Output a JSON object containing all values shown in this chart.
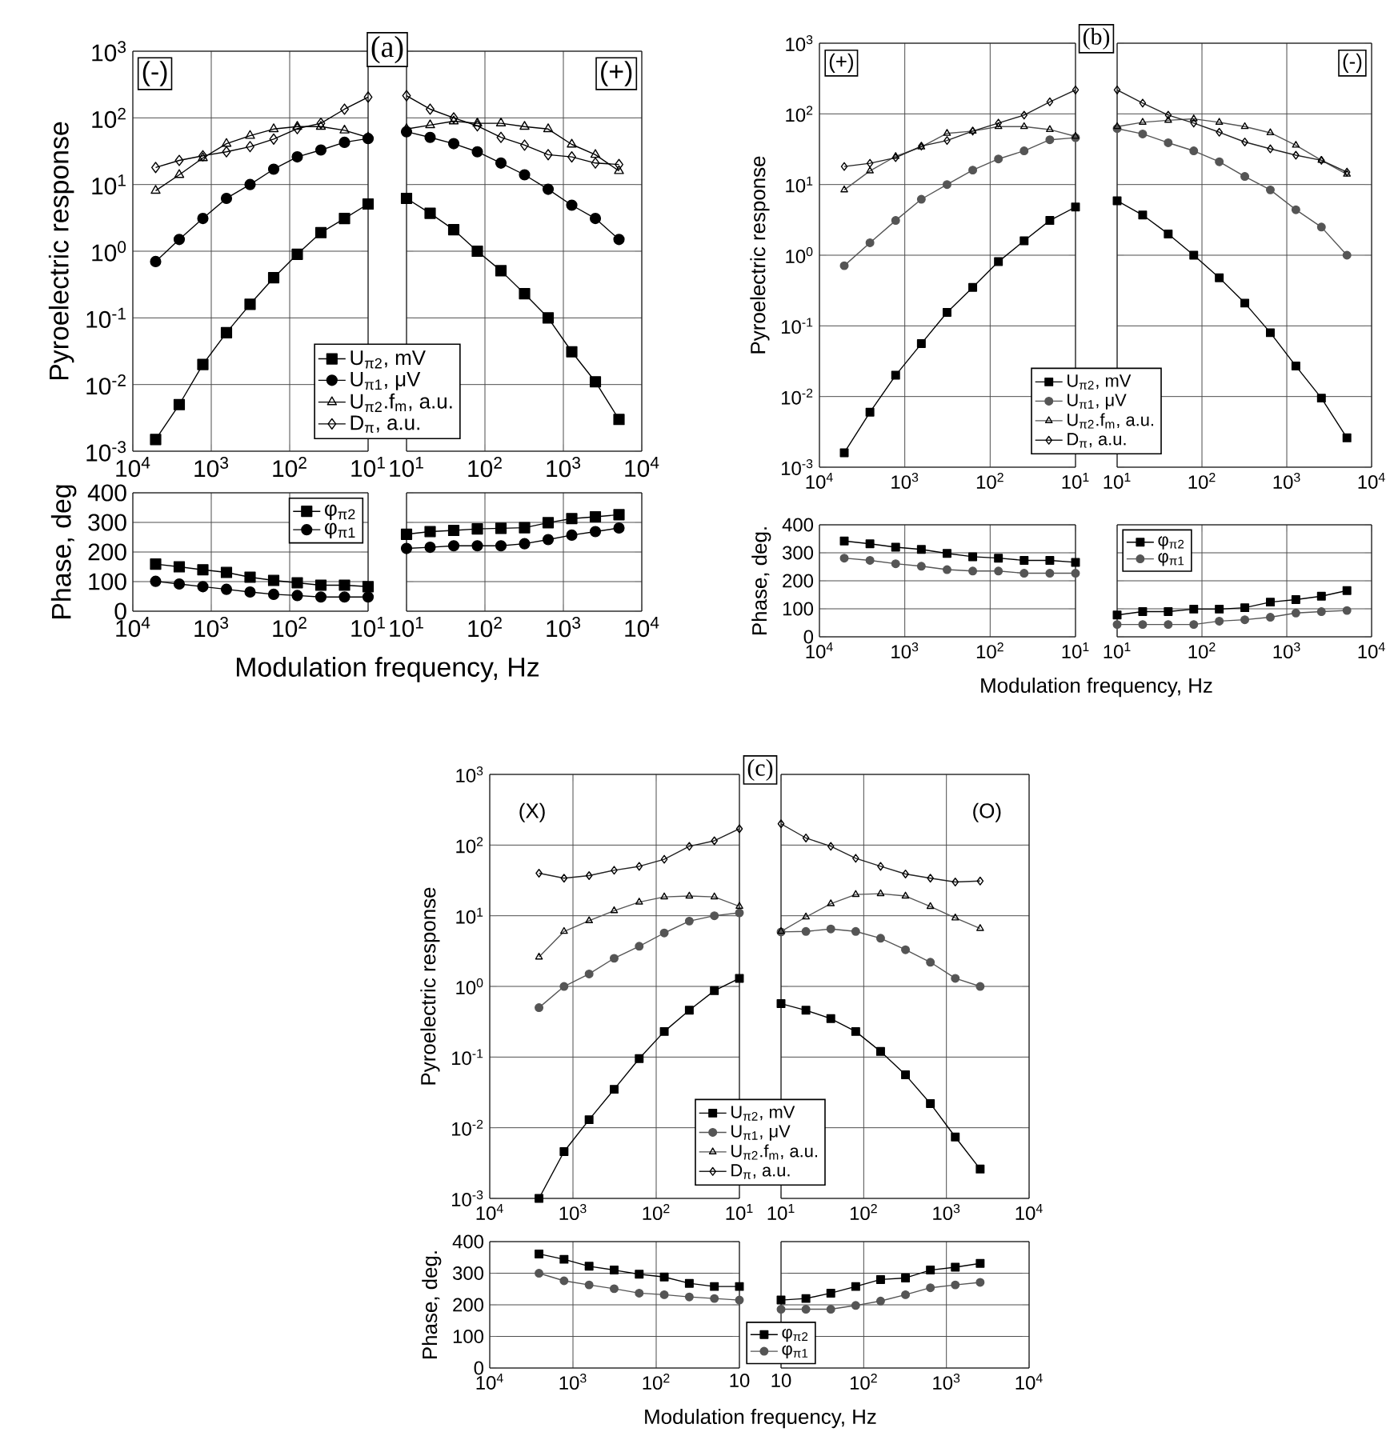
{
  "chart_data": [
    {
      "type": "line",
      "title": "(a)",
      "ylabel": "Pyroelectric response",
      "annotations": [
        "(-)"
      ],
      "log": "xy",
      "grid": true,
      "legend": "bottom",
      "x": [
        5120,
        2560,
        1280,
        640,
        320,
        160,
        80,
        40,
        20,
        10
      ],
      "xlim": [
        10000,
        10
      ],
      "ylim": [
        0.001,
        1000
      ],
      "xticks": [
        {
          "value": 10000,
          "label": "10$^{4}$"
        },
        {
          "value": 1000,
          "label": "10$^{3}$"
        },
        {
          "value": 100,
          "label": "10$^{2}$"
        },
        {
          "value": 10,
          "label": "10$^{1}$"
        }
      ],
      "yticks": [
        {
          "value": 0.001,
          "label": "10$^{-3}$"
        },
        {
          "value": 0.01,
          "label": "10$^{-2}$"
        },
        {
          "value": 0.1,
          "label": "10$^{-1}$"
        },
        {
          "value": 1,
          "label": "10$^{0}$"
        },
        {
          "value": 10,
          "label": "10$^{1}$"
        },
        {
          "value": 100,
          "label": "10$^{2}$"
        },
        {
          "value": 1000,
          "label": "10$^{3}$"
        }
      ],
      "series": [
        {
          "name": "U$_{π2}$, mV",
          "color": "#000000",
          "marker": "square",
          "values": [
            0.0015,
            0.005,
            0.02,
            0.06,
            0.16,
            0.4,
            0.9,
            1.9,
            3.1,
            5.1
          ]
        },
        {
          "name": "U$_{π1}$, μV",
          "color": "#000000",
          "marker": "circle",
          "values": [
            0.7,
            1.5,
            3.1,
            6.2,
            10,
            17,
            26,
            33,
            43,
            49
          ]
        },
        {
          "name": "U$_{π2}$.f$_{m}$, a.u.",
          "color": "#000000",
          "marker": "triangle",
          "values": [
            8.1,
            14,
            25,
            41,
            54,
            68,
            74,
            74,
            65,
            51
          ]
        },
        {
          "name": "D$_{π}$, a.u.",
          "color": "#000000",
          "marker": "diamond",
          "values": [
            18,
            23,
            27,
            31,
            37,
            48,
            69,
            83,
            135,
            205
          ]
        }
      ]
    },
    {
      "type": "line",
      "annotations": [
        "(+)"
      ],
      "log": "xy",
      "grid": true,
      "tick_labels": "x",
      "x": [
        10,
        20,
        40,
        80,
        160,
        320,
        640,
        1280,
        2560,
        5120
      ],
      "xlim": [
        10,
        10000
      ],
      "ylim": [
        0.001,
        1000
      ],
      "xticks": [
        {
          "value": 10,
          "label": "10$^{1}$"
        },
        {
          "value": 100,
          "label": "10$^{2}$"
        },
        {
          "value": 1000,
          "label": "10$^{3}$"
        },
        {
          "value": 10000,
          "label": "10$^{4}$"
        }
      ],
      "yticks": [
        {
          "value": 0.001,
          "label": null
        },
        {
          "value": 0.01,
          "label": null
        },
        {
          "value": 0.1,
          "label": null
        },
        {
          "value": 1,
          "label": null
        },
        {
          "value": 10,
          "label": null
        },
        {
          "value": 100,
          "label": null
        },
        {
          "value": 1000,
          "label": null
        }
      ],
      "series": [
        {
          "color": "#000000",
          "marker": "square",
          "values": [
            6.2,
            3.7,
            2.1,
            1.0,
            0.51,
            0.23,
            0.1,
            0.031,
            0.011,
            0.003
          ]
        },
        {
          "color": "#000000",
          "marker": "circle",
          "values": [
            62,
            51,
            41,
            31,
            21,
            14,
            8.5,
            4.9,
            3.1,
            1.5
          ]
        },
        {
          "color": "#000000",
          "marker": "triangle",
          "values": [
            68,
            78,
            89,
            83,
            83,
            74,
            68,
            40,
            28,
            16
          ]
        },
        {
          "color": "#000000",
          "marker": "diamond",
          "values": [
            215,
            135,
            100,
            76,
            51,
            39,
            28,
            26,
            21,
            20
          ]
        }
      ]
    },
    {
      "type": "line",
      "ylabel": "Phase, deg",
      "xlabel": "Modulation frequency, Hz",
      "log": "x",
      "grid": true,
      "legend": "top right",
      "x": [
        5120,
        2560,
        1280,
        640,
        320,
        160,
        80,
        40,
        20,
        10
      ],
      "xlim": [
        10000,
        10
      ],
      "ylim": [
        0,
        400
      ],
      "xticks": [
        {
          "value": 10000,
          "label": "10$^{4}$"
        },
        {
          "value": 1000,
          "label": "10$^{3}$"
        },
        {
          "value": 100,
          "label": "10$^{2}$"
        },
        {
          "value": 10,
          "label": "10$^{1}$"
        }
      ],
      "yticks": [
        0,
        100,
        200,
        300,
        400
      ],
      "series": [
        {
          "name": "φ$_{π2}$",
          "color": "#000000",
          "marker": "square",
          "values": [
            159,
            150,
            140,
            131,
            115,
            104,
            96,
            88,
            88,
            83
          ]
        },
        {
          "name": "φ$_{π1}$",
          "color": "#000000",
          "marker": "circle",
          "values": [
            101,
            92,
            83,
            74,
            65,
            57,
            53,
            48,
            48,
            48
          ]
        }
      ]
    },
    {
      "type": "line",
      "log": "x",
      "grid": true,
      "tick_labels": "x",
      "x": [
        10,
        20,
        40,
        80,
        160,
        320,
        640,
        1280,
        2560,
        5120
      ],
      "xlim": [
        10,
        10000
      ],
      "ylim": [
        0,
        400
      ],
      "xticks": [
        {
          "value": 10,
          "label": "10$^{1}$"
        },
        {
          "value": 100,
          "label": "10$^{2}$"
        },
        {
          "value": 1000,
          "label": "10$^{3}$"
        },
        {
          "value": 10000,
          "label": "10$^{4}$"
        }
      ],
      "yticks": [
        {
          "value": 0,
          "label": null
        },
        {
          "value": 100,
          "label": null
        },
        {
          "value": 200,
          "label": null
        },
        {
          "value": 300,
          "label": null
        },
        {
          "value": 400,
          "label": null
        }
      ],
      "series": [
        {
          "color": "#000000",
          "marker": "square",
          "values": [
            260,
            269,
            273,
            278,
            280,
            282,
            299,
            313,
            319,
            326
          ]
        },
        {
          "color": "#000000",
          "marker": "circle",
          "values": [
            212,
            216,
            221,
            221,
            221,
            228,
            242,
            257,
            269,
            281
          ]
        }
      ]
    },
    {
      "type": "line",
      "title": "(b)",
      "ylabel": "Pyroelectric response",
      "annotations": [
        "(+)"
      ],
      "log": "xy",
      "grid": true,
      "legend": "bottom",
      "x": [
        5120,
        2560,
        1280,
        640,
        320,
        160,
        80,
        40,
        20,
        10
      ],
      "xlim": [
        10000,
        10
      ],
      "ylim": [
        0.001,
        1000
      ],
      "xticks": [
        {
          "value": 10000,
          "label": "10$^{4}$"
        },
        {
          "value": 1000,
          "label": "10$^{3}$"
        },
        {
          "value": 100,
          "label": "10$^{2}$"
        },
        {
          "value": 10,
          "label": "10$^{1}$"
        }
      ],
      "yticks": [
        {
          "value": 0.001,
          "label": "10$^{-3}$"
        },
        {
          "value": 0.01,
          "label": "10$^{-2}$"
        },
        {
          "value": 0.1,
          "label": "10$^{-1}$"
        },
        {
          "value": 1,
          "label": "10$^{0}$"
        },
        {
          "value": 10,
          "label": "10$^{1}$"
        },
        {
          "value": 100,
          "label": "10$^{2}$"
        },
        {
          "value": 1000,
          "label": "10$^{3}$"
        }
      ],
      "series": [
        {
          "name": "U$_{π2}$, mV",
          "color": "#000000",
          "marker": "square",
          "values": [
            0.0016,
            0.006,
            0.02,
            0.056,
            0.155,
            0.35,
            0.81,
            1.6,
            3.1,
            4.8
          ]
        },
        {
          "name": "U$_{π1}$, μV",
          "color": "#555555",
          "marker": "circle",
          "values": [
            0.71,
            1.5,
            3.1,
            6.2,
            10,
            16,
            23,
            30,
            43,
            46
          ]
        },
        {
          "name": "U$_{π2}$.f$_{m}$, a.u.",
          "color": "#555555",
          "marker": "triangle",
          "values": [
            8.4,
            15.6,
            25,
            34,
            53,
            57,
            66,
            66,
            60,
            48
          ]
        },
        {
          "name": "D$_{π}$, a.u.",
          "color": "#222222",
          "marker": "diamond",
          "values": [
            18,
            20,
            24,
            35,
            42,
            57,
            74,
            96,
            148,
            218
          ]
        }
      ]
    },
    {
      "type": "line",
      "annotations": [
        "(-)"
      ],
      "log": "xy",
      "grid": true,
      "tick_labels": "x",
      "x": [
        10,
        20,
        40,
        80,
        160,
        320,
        640,
        1280,
        2560,
        5120
      ],
      "xlim": [
        10,
        10000
      ],
      "ylim": [
        0.001,
        1000
      ],
      "xticks": [
        {
          "value": 10,
          "label": "10$^{1}$"
        },
        {
          "value": 100,
          "label": "10$^{2}$"
        },
        {
          "value": 1000,
          "label": "10$^{3}$"
        },
        {
          "value": 10000,
          "label": "10$^{4}$"
        }
      ],
      "yticks": [
        {
          "value": 0.001,
          "label": null
        },
        {
          "value": 0.01,
          "label": null
        },
        {
          "value": 0.1,
          "label": null
        },
        {
          "value": 1,
          "label": null
        },
        {
          "value": 10,
          "label": null
        },
        {
          "value": 100,
          "label": null
        },
        {
          "value": 1000,
          "label": null
        }
      ],
      "series": [
        {
          "color": "#000000",
          "marker": "square",
          "values": [
            5.9,
            3.7,
            2.0,
            1.0,
            0.48,
            0.21,
            0.08,
            0.027,
            0.0095,
            0.0026
          ]
        },
        {
          "color": "#555555",
          "marker": "circle",
          "values": [
            62,
            52,
            39,
            30,
            21,
            13,
            8.4,
            4.4,
            2.5,
            1.0
          ]
        },
        {
          "color": "#555555",
          "marker": "triangle",
          "values": [
            66,
            76,
            81,
            85,
            76,
            66,
            54,
            36,
            22,
            14
          ]
        },
        {
          "color": "#222222",
          "marker": "diamond",
          "values": [
            218,
            142,
            96,
            74,
            55,
            40,
            32,
            26,
            22,
            15
          ]
        }
      ]
    },
    {
      "type": "line",
      "ylabel": "Phase, deg.",
      "xlabel": "Modulation frequency, Hz",
      "log": "x",
      "grid": true,
      "x": [
        5120,
        2560,
        1280,
        640,
        320,
        160,
        80,
        40,
        20,
        10
      ],
      "xlim": [
        10000,
        10
      ],
      "ylim": [
        0,
        400
      ],
      "xticks": [
        {
          "value": 10000,
          "label": "10$^{4}$"
        },
        {
          "value": 1000,
          "label": "10$^{3}$"
        },
        {
          "value": 100,
          "label": "10$^{2}$"
        },
        {
          "value": 10,
          "label": "10$^{1}$"
        }
      ],
      "yticks": [
        0,
        100,
        200,
        300,
        400
      ],
      "series": [
        {
          "color": "#000000",
          "marker": "square",
          "values": [
            342,
            332,
            320,
            312,
            298,
            286,
            281,
            273,
            273,
            266
          ]
        },
        {
          "color": "#555555",
          "marker": "circle",
          "values": [
            281,
            273,
            261,
            252,
            240,
            235,
            235,
            227,
            227,
            227
          ]
        }
      ]
    },
    {
      "type": "line",
      "log": "x",
      "grid": true,
      "tick_labels": "x",
      "legend": "top left",
      "x": [
        10,
        20,
        40,
        80,
        160,
        320,
        640,
        1280,
        2560,
        5120
      ],
      "xlim": [
        10,
        10000
      ],
      "ylim": [
        0,
        400
      ],
      "xticks": [
        {
          "value": 10,
          "label": "10$^{1}$"
        },
        {
          "value": 100,
          "label": "10$^{2}$"
        },
        {
          "value": 1000,
          "label": "10$^{3}$"
        },
        {
          "value": 10000,
          "label": "10$^{4}$"
        }
      ],
      "yticks": [
        {
          "value": 0,
          "label": null
        },
        {
          "value": 100,
          "label": null
        },
        {
          "value": 200,
          "label": null
        },
        {
          "value": 300,
          "label": null
        },
        {
          "value": 400,
          "label": null
        }
      ],
      "series": [
        {
          "name": "φ$_{π2}$",
          "color": "#000000",
          "marker": "square",
          "values": [
            78,
            90,
            90,
            99,
            99,
            104,
            124,
            133,
            145,
            165
          ]
        },
        {
          "name": "φ$_{π1}$",
          "color": "#555555",
          "marker": "circle",
          "values": [
            44,
            44,
            44,
            44,
            56,
            61,
            70,
            85,
            90,
            94
          ]
        }
      ]
    },
    {
      "type": "line",
      "title": "(c)",
      "ylabel": "Pyroelectric response",
      "annotations": [
        "(X)"
      ],
      "log": "xy",
      "grid": true,
      "legend": "bottom",
      "x": [
        2560,
        1280,
        640,
        320,
        160,
        80,
        40,
        20,
        10
      ],
      "xlim": [
        10000,
        10
      ],
      "ylim": [
        0.001,
        1000
      ],
      "xticks": [
        {
          "value": 10000,
          "label": "10$^{4}$"
        },
        {
          "value": 1000,
          "label": "10$^{3}$"
        },
        {
          "value": 100,
          "label": "10$^{2}$"
        },
        {
          "value": 10,
          "label": "10$^{1}$"
        }
      ],
      "yticks": [
        {
          "value": 0.001,
          "label": "10$^{-3}$"
        },
        {
          "value": 0.01,
          "label": "10$^{-2}$"
        },
        {
          "value": 0.1,
          "label": "10$^{-1}$"
        },
        {
          "value": 1,
          "label": "10$^{0}$"
        },
        {
          "value": 10,
          "label": "10$^{1}$"
        },
        {
          "value": 100,
          "label": "10$^{2}$"
        },
        {
          "value": 1000,
          "label": "10$^{3}$"
        }
      ],
      "series": [
        {
          "name": "U$_{π2}$, mV",
          "color": "#000000",
          "marker": "square",
          "values": [
            0.001,
            0.0046,
            0.013,
            0.035,
            0.095,
            0.23,
            0.46,
            0.87,
            1.3
          ]
        },
        {
          "name": "U$_{π1}$, μV",
          "color": "#555555",
          "marker": "circle",
          "values": [
            0.5,
            1.0,
            1.5,
            2.5,
            3.7,
            5.7,
            8.4,
            10,
            11
          ]
        },
        {
          "name": "U$_{π2}$.f$_{m}$, a.u.",
          "color": "#555555",
          "marker": "triangle",
          "values": [
            2.6,
            6.0,
            8.5,
            11.8,
            15.6,
            18.5,
            19,
            18.5,
            13.6
          ]
        },
        {
          "name": "D$_{π}$, a.u.",
          "color": "#222222",
          "marker": "diamond",
          "values": [
            40,
            34,
            37,
            44,
            50,
            63,
            96,
            115,
            170
          ]
        }
      ]
    },
    {
      "type": "line",
      "annotations": [
        "(O)"
      ],
      "log": "xy",
      "grid": true,
      "tick_labels": "x",
      "x": [
        10,
        20,
        40,
        80,
        160,
        320,
        640,
        1280,
        2560
      ],
      "xlim": [
        10,
        10000
      ],
      "ylim": [
        0.001,
        1000
      ],
      "xticks": [
        {
          "value": 10,
          "label": "10$^{1}$"
        },
        {
          "value": 100,
          "label": "10$^{2}$"
        },
        {
          "value": 1000,
          "label": "10$^{3}$"
        },
        {
          "value": 10000,
          "label": "10$^{4}$"
        }
      ],
      "yticks": [
        {
          "value": 0.001,
          "label": null
        },
        {
          "value": 0.01,
          "label": null
        },
        {
          "value": 0.1,
          "label": null
        },
        {
          "value": 1,
          "label": null
        },
        {
          "value": 10,
          "label": null
        },
        {
          "value": 100,
          "label": null
        },
        {
          "value": 1000,
          "label": null
        }
      ],
      "series": [
        {
          "color": "#000000",
          "marker": "square",
          "values": [
            0.57,
            0.46,
            0.35,
            0.23,
            0.12,
            0.056,
            0.022,
            0.0074,
            0.0026
          ]
        },
        {
          "color": "#555555",
          "marker": "circle",
          "values": [
            5.9,
            6.0,
            6.5,
            6.0,
            4.8,
            3.3,
            2.2,
            1.3,
            1.0
          ]
        },
        {
          "color": "#555555",
          "marker": "triangle",
          "values": [
            6.0,
            9.6,
            14.8,
            20,
            20.5,
            19,
            13.5,
            9.3,
            6.6
          ]
        },
        {
          "color": "#222222",
          "marker": "diamond",
          "values": [
            200,
            126,
            96,
            65,
            50,
            39,
            34,
            30,
            31
          ]
        }
      ]
    },
    {
      "type": "line",
      "ylabel": "Phase, deg.",
      "xlabel": "Modulation frequency, Hz",
      "log": "x",
      "grid": true,
      "x": [
        2560,
        1280,
        640,
        320,
        160,
        80,
        40,
        20,
        10
      ],
      "xlim": [
        10000,
        10
      ],
      "ylim": [
        0,
        400
      ],
      "xticks": [
        {
          "value": 10000,
          "label": "10$^{4}$"
        },
        {
          "value": 1000,
          "label": "10$^{3}$"
        },
        {
          "value": 100,
          "label": "10$^{2}$"
        },
        10
      ],
      "yticks": [
        0,
        100,
        200,
        300,
        400
      ],
      "series": [
        {
          "color": "#000000",
          "marker": "square",
          "values": [
            361,
            344,
            322,
            310,
            297,
            288,
            268,
            258,
            258
          ]
        },
        {
          "color": "#555555",
          "marker": "circle",
          "values": [
            300,
            276,
            263,
            251,
            237,
            232,
            225,
            220,
            215
          ]
        }
      ]
    },
    {
      "type": "line",
      "log": "x",
      "grid": true,
      "tick_labels": "x",
      "legend": "bottom left",
      "x": [
        10,
        20,
        40,
        80,
        160,
        320,
        640,
        1280,
        2560
      ],
      "xlim": [
        10,
        10000
      ],
      "ylim": [
        0,
        400
      ],
      "xticks": [
        10,
        {
          "value": 100,
          "label": "10$^{2}$"
        },
        {
          "value": 1000,
          "label": "10$^{3}$"
        },
        {
          "value": 10000,
          "label": "10$^{4}$"
        }
      ],
      "yticks": [
        {
          "value": 0,
          "label": null
        },
        {
          "value": 100,
          "label": null
        },
        {
          "value": 200,
          "label": null
        },
        {
          "value": 300,
          "label": null
        },
        {
          "value": 400,
          "label": null
        }
      ],
      "series": [
        {
          "name": "φ$_{π2}$",
          "color": "#000000",
          "marker": "square",
          "values": [
            215,
            220,
            237,
            258,
            280,
            285,
            310,
            319,
            331
          ]
        },
        {
          "name": "φ$_{π1}$",
          "color": "#555555",
          "marker": "circle",
          "values": [
            186,
            186,
            186,
            198,
            212,
            232,
            254,
            263,
            271
          ]
        }
      ]
    }
  ]
}
